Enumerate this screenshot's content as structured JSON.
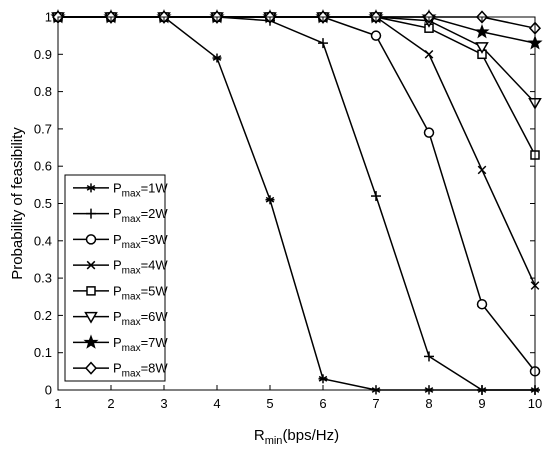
{
  "chart_data": {
    "type": "line",
    "title": "",
    "xlabel": {
      "main": "R",
      "sub": "min",
      "rest": "(bps/Hz)"
    },
    "ylabel": "Probability of feasibility",
    "xlim": [
      1,
      10
    ],
    "ylim": [
      0,
      1
    ],
    "xticks": [
      "1",
      "2",
      "3",
      "4",
      "5",
      "6",
      "7",
      "8",
      "9",
      "10"
    ],
    "yticks": [
      "0",
      "0.1",
      "0.2",
      "0.3",
      "0.4",
      "0.5",
      "0.6",
      "0.7",
      "0.8",
      "0.9",
      "1"
    ],
    "grid": false,
    "legend_position": "bottom-left",
    "x": [
      1,
      2,
      3,
      4,
      5,
      6,
      7,
      8,
      9,
      10
    ],
    "series": [
      {
        "name_main": "P",
        "name_sub": "max",
        "name_rest": "=1W",
        "marker": "asterisk",
        "values": [
          1,
          1,
          1,
          0.89,
          0.51,
          0.03,
          0,
          0,
          0,
          0
        ]
      },
      {
        "name_main": "P",
        "name_sub": "max",
        "name_rest": "=2W",
        "marker": "plus",
        "values": [
          1,
          1,
          1,
          1,
          0.99,
          0.93,
          0.52,
          0.09,
          0,
          0
        ]
      },
      {
        "name_main": "P",
        "name_sub": "max",
        "name_rest": "=3W",
        "marker": "circle",
        "values": [
          1,
          1,
          1,
          1,
          1,
          1,
          0.95,
          0.69,
          0.23,
          0.05
        ]
      },
      {
        "name_main": "P",
        "name_sub": "max",
        "name_rest": "=4W",
        "marker": "x",
        "values": [
          1,
          1,
          1,
          1,
          1,
          1,
          1,
          0.9,
          0.59,
          0.28
        ]
      },
      {
        "name_main": "P",
        "name_sub": "max",
        "name_rest": "=5W",
        "marker": "square",
        "values": [
          1,
          1,
          1,
          1,
          1,
          1,
          1,
          0.97,
          0.9,
          0.63
        ]
      },
      {
        "name_main": "P",
        "name_sub": "max",
        "name_rest": "=6W",
        "marker": "triangle-down",
        "values": [
          1,
          1,
          1,
          1,
          1,
          1,
          1,
          0.99,
          0.92,
          0.77
        ]
      },
      {
        "name_main": "P",
        "name_sub": "max",
        "name_rest": "=7W",
        "marker": "star",
        "values": [
          1,
          1,
          1,
          1,
          1,
          1,
          1,
          1,
          0.96,
          0.93
        ]
      },
      {
        "name_main": "P",
        "name_sub": "max",
        "name_rest": "=8W",
        "marker": "diamond",
        "values": [
          1,
          1,
          1,
          1,
          1,
          1,
          1,
          1,
          1,
          0.97
        ]
      }
    ]
  }
}
